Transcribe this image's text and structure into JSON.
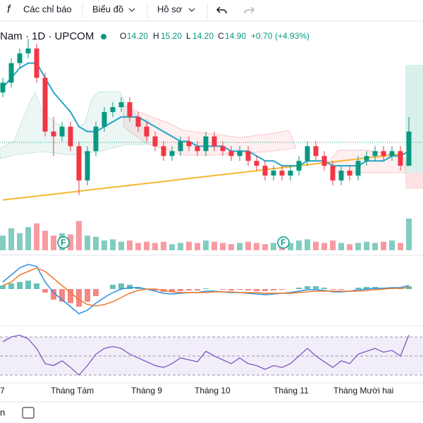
{
  "toolbar": {
    "indicators": "Các chỉ báo",
    "chart": "Biểu đồ",
    "profile": "Hồ sơ"
  },
  "legend": {
    "symbol": "Nam · 1D · UPCOM",
    "o_label": "O",
    "open": {
      "value": 14.2,
      "label": "14.20"
    },
    "h_label": "H",
    "high": {
      "value": 15.2,
      "label": "15.20"
    },
    "l_label": "L",
    "low": {
      "value": 14.2,
      "label": "14.20"
    },
    "c_label": "C",
    "close": {
      "value": 14.9,
      "label": "14.90"
    },
    "change": "+0.70",
    "change_pct": "(+4.93%)"
  },
  "chart_data": {
    "type": "candlestick",
    "ylim": [
      13.4,
      17.1
    ],
    "candles": [
      [
        15.7,
        16.0,
        15.6,
        15.9
      ],
      [
        15.9,
        16.4,
        15.8,
        16.3
      ],
      [
        16.3,
        16.6,
        16.2,
        16.5
      ],
      [
        16.5,
        16.8,
        16.4,
        16.6
      ],
      [
        16.6,
        16.7,
        15.9,
        16.0
      ],
      [
        16.0,
        16.1,
        14.8,
        14.9
      ],
      [
        14.9,
        15.2,
        14.4,
        14.8
      ],
      [
        14.8,
        15.1,
        14.7,
        15.0
      ],
      [
        15.0,
        15.1,
        14.5,
        14.6
      ],
      [
        14.6,
        14.7,
        13.6,
        13.9
      ],
      [
        13.9,
        14.6,
        13.8,
        14.5
      ],
      [
        14.5,
        15.1,
        14.4,
        15.0
      ],
      [
        15.0,
        15.4,
        14.9,
        15.3
      ],
      [
        15.3,
        15.5,
        15.2,
        15.4
      ],
      [
        15.4,
        15.6,
        15.3,
        15.5
      ],
      [
        15.5,
        15.6,
        15.1,
        15.2
      ],
      [
        15.2,
        15.3,
        14.9,
        15.0
      ],
      [
        15.0,
        15.1,
        14.7,
        14.8
      ],
      [
        14.8,
        14.9,
        14.5,
        14.6
      ],
      [
        14.6,
        14.7,
        14.3,
        14.4
      ],
      [
        14.4,
        14.6,
        14.3,
        14.5
      ],
      [
        14.5,
        14.8,
        14.4,
        14.7
      ],
      [
        14.7,
        14.8,
        14.5,
        14.6
      ],
      [
        14.6,
        14.7,
        14.4,
        14.5
      ],
      [
        14.5,
        14.9,
        14.4,
        14.8
      ],
      [
        14.8,
        14.9,
        14.5,
        14.6
      ],
      [
        14.6,
        14.7,
        14.4,
        14.5
      ],
      [
        14.5,
        14.6,
        14.3,
        14.4
      ],
      [
        14.4,
        14.6,
        14.3,
        14.5
      ],
      [
        14.5,
        14.6,
        14.2,
        14.3
      ],
      [
        14.3,
        14.4,
        14.1,
        14.2
      ],
      [
        14.2,
        14.3,
        13.9,
        14.0
      ],
      [
        14.0,
        14.2,
        13.9,
        14.1
      ],
      [
        14.1,
        14.2,
        13.9,
        14.0
      ],
      [
        14.0,
        14.2,
        13.9,
        14.1
      ],
      [
        14.1,
        14.4,
        14.0,
        14.3
      ],
      [
        14.3,
        14.7,
        14.2,
        14.6
      ],
      [
        14.6,
        14.7,
        14.3,
        14.4
      ],
      [
        14.4,
        14.5,
        14.1,
        14.2
      ],
      [
        14.2,
        14.3,
        13.8,
        13.9
      ],
      [
        13.9,
        14.2,
        13.8,
        14.1
      ],
      [
        14.1,
        14.2,
        13.9,
        14.0
      ],
      [
        14.0,
        14.4,
        13.9,
        14.3
      ],
      [
        14.3,
        14.5,
        14.2,
        14.4
      ],
      [
        14.4,
        14.6,
        14.3,
        14.5
      ],
      [
        14.5,
        14.6,
        14.3,
        14.4
      ],
      [
        14.4,
        14.6,
        14.3,
        14.5
      ],
      [
        14.5,
        14.6,
        14.1,
        14.2
      ],
      [
        14.2,
        15.2,
        14.2,
        14.9
      ]
    ],
    "ma_fast": {
      "color": "#22a5c9",
      "values": [
        15.8,
        16.0,
        16.2,
        16.3,
        16.3,
        16.0,
        15.7,
        15.5,
        15.3,
        15.0,
        14.9,
        14.9,
        15.0,
        15.1,
        15.2,
        15.2,
        15.2,
        15.1,
        15.0,
        14.9,
        14.8,
        14.7,
        14.7,
        14.6,
        14.6,
        14.6,
        14.6,
        14.5,
        14.5,
        14.5,
        14.4,
        14.3,
        14.3,
        14.2,
        14.2,
        14.2,
        14.3,
        14.3,
        14.3,
        14.2,
        14.2,
        14.2,
        14.2,
        14.3,
        14.3,
        14.3,
        14.4,
        14.4,
        14.5
      ]
    },
    "ma_slow": {
      "color": "#f5b82e",
      "values": [
        13.5,
        13.52,
        13.54,
        13.56,
        13.58,
        13.6,
        13.62,
        13.64,
        13.66,
        13.68,
        13.7,
        13.72,
        13.74,
        13.76,
        13.78,
        13.8,
        13.82,
        13.84,
        13.86,
        13.88,
        13.9,
        13.92,
        13.94,
        13.96,
        13.98,
        14.0,
        14.02,
        14.04,
        14.06,
        14.08,
        14.1,
        14.12,
        14.14,
        14.16,
        14.18,
        14.2,
        14.22,
        14.24,
        14.26,
        14.28,
        14.3,
        14.32,
        14.34,
        14.36,
        14.38,
        14.4,
        14.42,
        14.44,
        14.46
      ]
    },
    "volume": {
      "ylim": [
        0,
        140
      ],
      "values": [
        60,
        90,
        70,
        95,
        110,
        80,
        60,
        70,
        65,
        120,
        60,
        55,
        40,
        45,
        35,
        40,
        30,
        35,
        30,
        35,
        25,
        30,
        35,
        30,
        40,
        35,
        30,
        25,
        30,
        35,
        30,
        25,
        30,
        35,
        30,
        40,
        45,
        35,
        30,
        40,
        30,
        25,
        30,
        35,
        30,
        35,
        40,
        30,
        130
      ]
    },
    "macd": {
      "ylim": [
        -0.4,
        0.4
      ],
      "hist": [
        0.05,
        0.08,
        0.1,
        0.12,
        0.08,
        -0.05,
        -0.15,
        -0.18,
        -0.2,
        -0.25,
        -0.18,
        -0.1,
        0,
        0.06,
        0.08,
        0.06,
        0.03,
        0,
        -0.02,
        -0.04,
        -0.04,
        -0.03,
        -0.02,
        -0.02,
        0.01,
        0,
        -0.01,
        -0.02,
        -0.01,
        -0.02,
        -0.03,
        -0.03,
        -0.02,
        -0.01,
        0,
        0.02,
        0.04,
        0.04,
        0.02,
        -0.01,
        -0.01,
        0,
        0.02,
        0.03,
        0.03,
        0.02,
        0.02,
        0.01,
        0.04
      ],
      "line": {
        "color": "#2d8fe0",
        "values": [
          0.1,
          0.2,
          0.3,
          0.35,
          0.32,
          0.1,
          -0.05,
          -0.15,
          -0.25,
          -0.35,
          -0.3,
          -0.2,
          -0.12,
          -0.05,
          0,
          0.02,
          0.02,
          0,
          -0.03,
          -0.06,
          -0.07,
          -0.06,
          -0.05,
          -0.05,
          -0.03,
          -0.03,
          -0.04,
          -0.05,
          -0.05,
          -0.06,
          -0.07,
          -0.08,
          -0.07,
          -0.06,
          -0.05,
          -0.03,
          -0.01,
          -0.01,
          -0.02,
          -0.04,
          -0.04,
          -0.03,
          -0.01,
          0,
          0.01,
          0.01,
          0.02,
          0.02,
          0.05
        ]
      },
      "signal": {
        "color": "#f07a2a",
        "values": [
          0.05,
          0.1,
          0.2,
          0.25,
          0.3,
          0.25,
          0.15,
          0.05,
          -0.05,
          -0.15,
          -0.22,
          -0.24,
          -0.22,
          -0.18,
          -0.12,
          -0.06,
          -0.02,
          0,
          0,
          -0.02,
          -0.04,
          -0.05,
          -0.05,
          -0.05,
          -0.05,
          -0.04,
          -0.04,
          -0.04,
          -0.05,
          -0.05,
          -0.05,
          -0.06,
          -0.06,
          -0.06,
          -0.06,
          -0.05,
          -0.04,
          -0.03,
          -0.03,
          -0.03,
          -0.03,
          -0.03,
          -0.03,
          -0.02,
          -0.01,
          0,
          0.01,
          0.01,
          0.02
        ]
      }
    },
    "rsi": {
      "ylim": [
        20,
        80
      ],
      "levels": [
        70,
        50,
        30
      ],
      "color": "#7e57c2",
      "values": [
        65,
        70,
        72,
        68,
        58,
        42,
        40,
        45,
        38,
        30,
        40,
        52,
        58,
        60,
        58,
        52,
        48,
        44,
        40,
        38,
        42,
        48,
        46,
        44,
        55,
        50,
        46,
        42,
        48,
        42,
        40,
        36,
        40,
        38,
        42,
        50,
        58,
        50,
        44,
        38,
        45,
        42,
        52,
        55,
        58,
        54,
        56,
        50,
        72
      ]
    },
    "months": [
      "7",
      "Tháng Tám",
      "Tháng 9",
      "Tháng 10",
      "Tháng 11",
      "Tháng Mười hai"
    ]
  },
  "footer": {
    "range": "n"
  }
}
